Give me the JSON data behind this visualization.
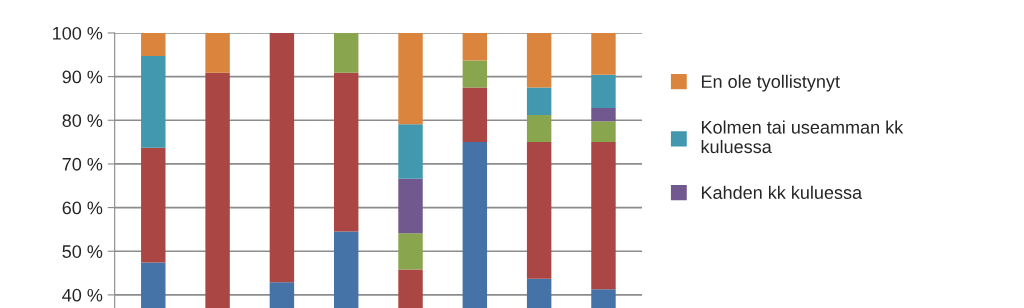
{
  "chart_data": {
    "type": "bar",
    "categories": [
      null,
      null,
      null,
      null,
      null,
      null,
      null,
      null
    ],
    "series": [
      {
        "color": "#4572a7",
        "values": [
          47.4,
          null,
          42.9,
          54.5,
          null,
          75.0,
          43.7,
          41.3
        ],
        "base": [
          0,
          null,
          0,
          0,
          null,
          0,
          0,
          0
        ]
      },
      {
        "color": "#aa4643",
        "values": [
          26.3,
          90.9,
          57.1,
          36.4,
          45.8,
          12.5,
          31.3,
          33.7
        ],
        "base": [
          47.4,
          0,
          42.9,
          54.5,
          0,
          75.0,
          43.7,
          41.3
        ]
      },
      {
        "color": "#89a54e",
        "values": [
          null,
          null,
          null,
          9.1,
          8.3,
          6.2,
          6.2,
          4.8
        ],
        "base": [
          null,
          null,
          null,
          90.9,
          45.8,
          87.5,
          75.0,
          75.0
        ]
      },
      {
        "name": "Kahden kk kuluessa",
        "color": "#71588f",
        "values": [
          null,
          null,
          null,
          null,
          12.5,
          null,
          null,
          3.0
        ],
        "base": [
          null,
          null,
          null,
          null,
          54.1,
          null,
          null,
          79.8
        ]
      },
      {
        "name": "Kolmen tai useamman kk\nkuluessa",
        "color": "#4198af",
        "values": [
          21.0,
          null,
          null,
          null,
          12.5,
          null,
          6.3,
          7.6
        ],
        "base": [
          73.7,
          null,
          null,
          null,
          66.6,
          null,
          81.2,
          82.8
        ]
      },
      {
        "name": "En ole tyollistynyt",
        "color": "#db843d",
        "values": [
          5.3,
          9.1,
          null,
          null,
          20.9,
          6.3,
          12.5,
          9.6
        ],
        "base": [
          94.7,
          90.9,
          null,
          null,
          79.1,
          93.7,
          87.5,
          90.4
        ]
      }
    ],
    "ylim": [
      37,
      100
    ],
    "yticks": [
      {
        "value": 40,
        "label": "40 %"
      },
      {
        "value": 50,
        "label": "50 %"
      },
      {
        "value": 60,
        "label": "60 %"
      },
      {
        "value": 70,
        "label": "70 %"
      },
      {
        "value": 80,
        "label": "80 %"
      },
      {
        "value": 90,
        "label": "90 %"
      },
      {
        "value": 100,
        "label": "100 %"
      }
    ],
    "grid": "y",
    "legend": "right"
  }
}
